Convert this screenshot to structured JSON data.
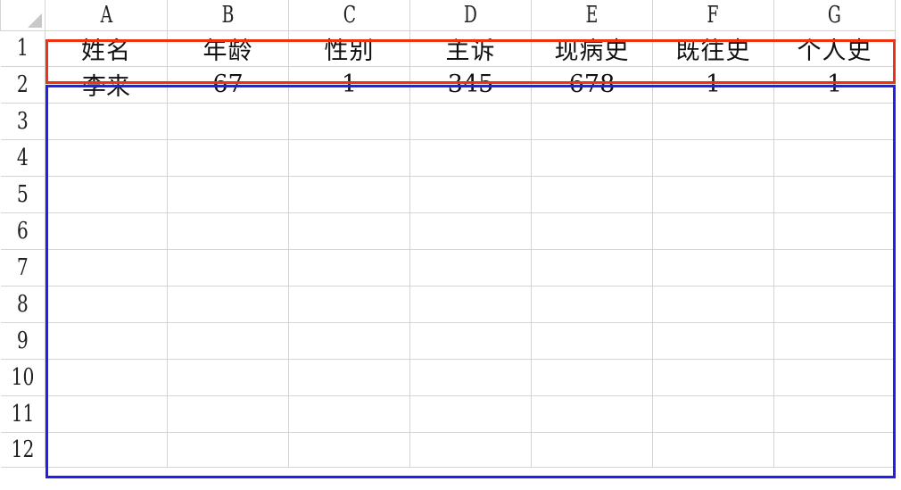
{
  "columns": [
    "A",
    "B",
    "C",
    "D",
    "E",
    "F",
    "G"
  ],
  "rows": [
    "1",
    "2",
    "3",
    "4",
    "5",
    "6",
    "7",
    "8",
    "9",
    "10",
    "11",
    "12"
  ],
  "cells": [
    [
      "姓名",
      "年龄",
      "性别",
      "主诉",
      "现病史",
      "既往史",
      "个人史"
    ],
    [
      "李来",
      "67",
      "1",
      "345",
      "678",
      "1",
      "1"
    ],
    [
      "",
      "",
      "",
      "",
      "",
      "",
      ""
    ],
    [
      "",
      "",
      "",
      "",
      "",
      "",
      ""
    ],
    [
      "",
      "",
      "",
      "",
      "",
      "",
      ""
    ],
    [
      "",
      "",
      "",
      "",
      "",
      "",
      ""
    ],
    [
      "",
      "",
      "",
      "",
      "",
      "",
      ""
    ],
    [
      "",
      "",
      "",
      "",
      "",
      "",
      ""
    ],
    [
      "",
      "",
      "",
      "",
      "",
      "",
      ""
    ],
    [
      "",
      "",
      "",
      "",
      "",
      "",
      ""
    ],
    [
      "",
      "",
      "",
      "",
      "",
      "",
      ""
    ],
    [
      "",
      "",
      "",
      "",
      "",
      "",
      ""
    ]
  ],
  "highlights": {
    "header_box_color": "#ee3311",
    "data_box_color": "#1f1fee"
  }
}
